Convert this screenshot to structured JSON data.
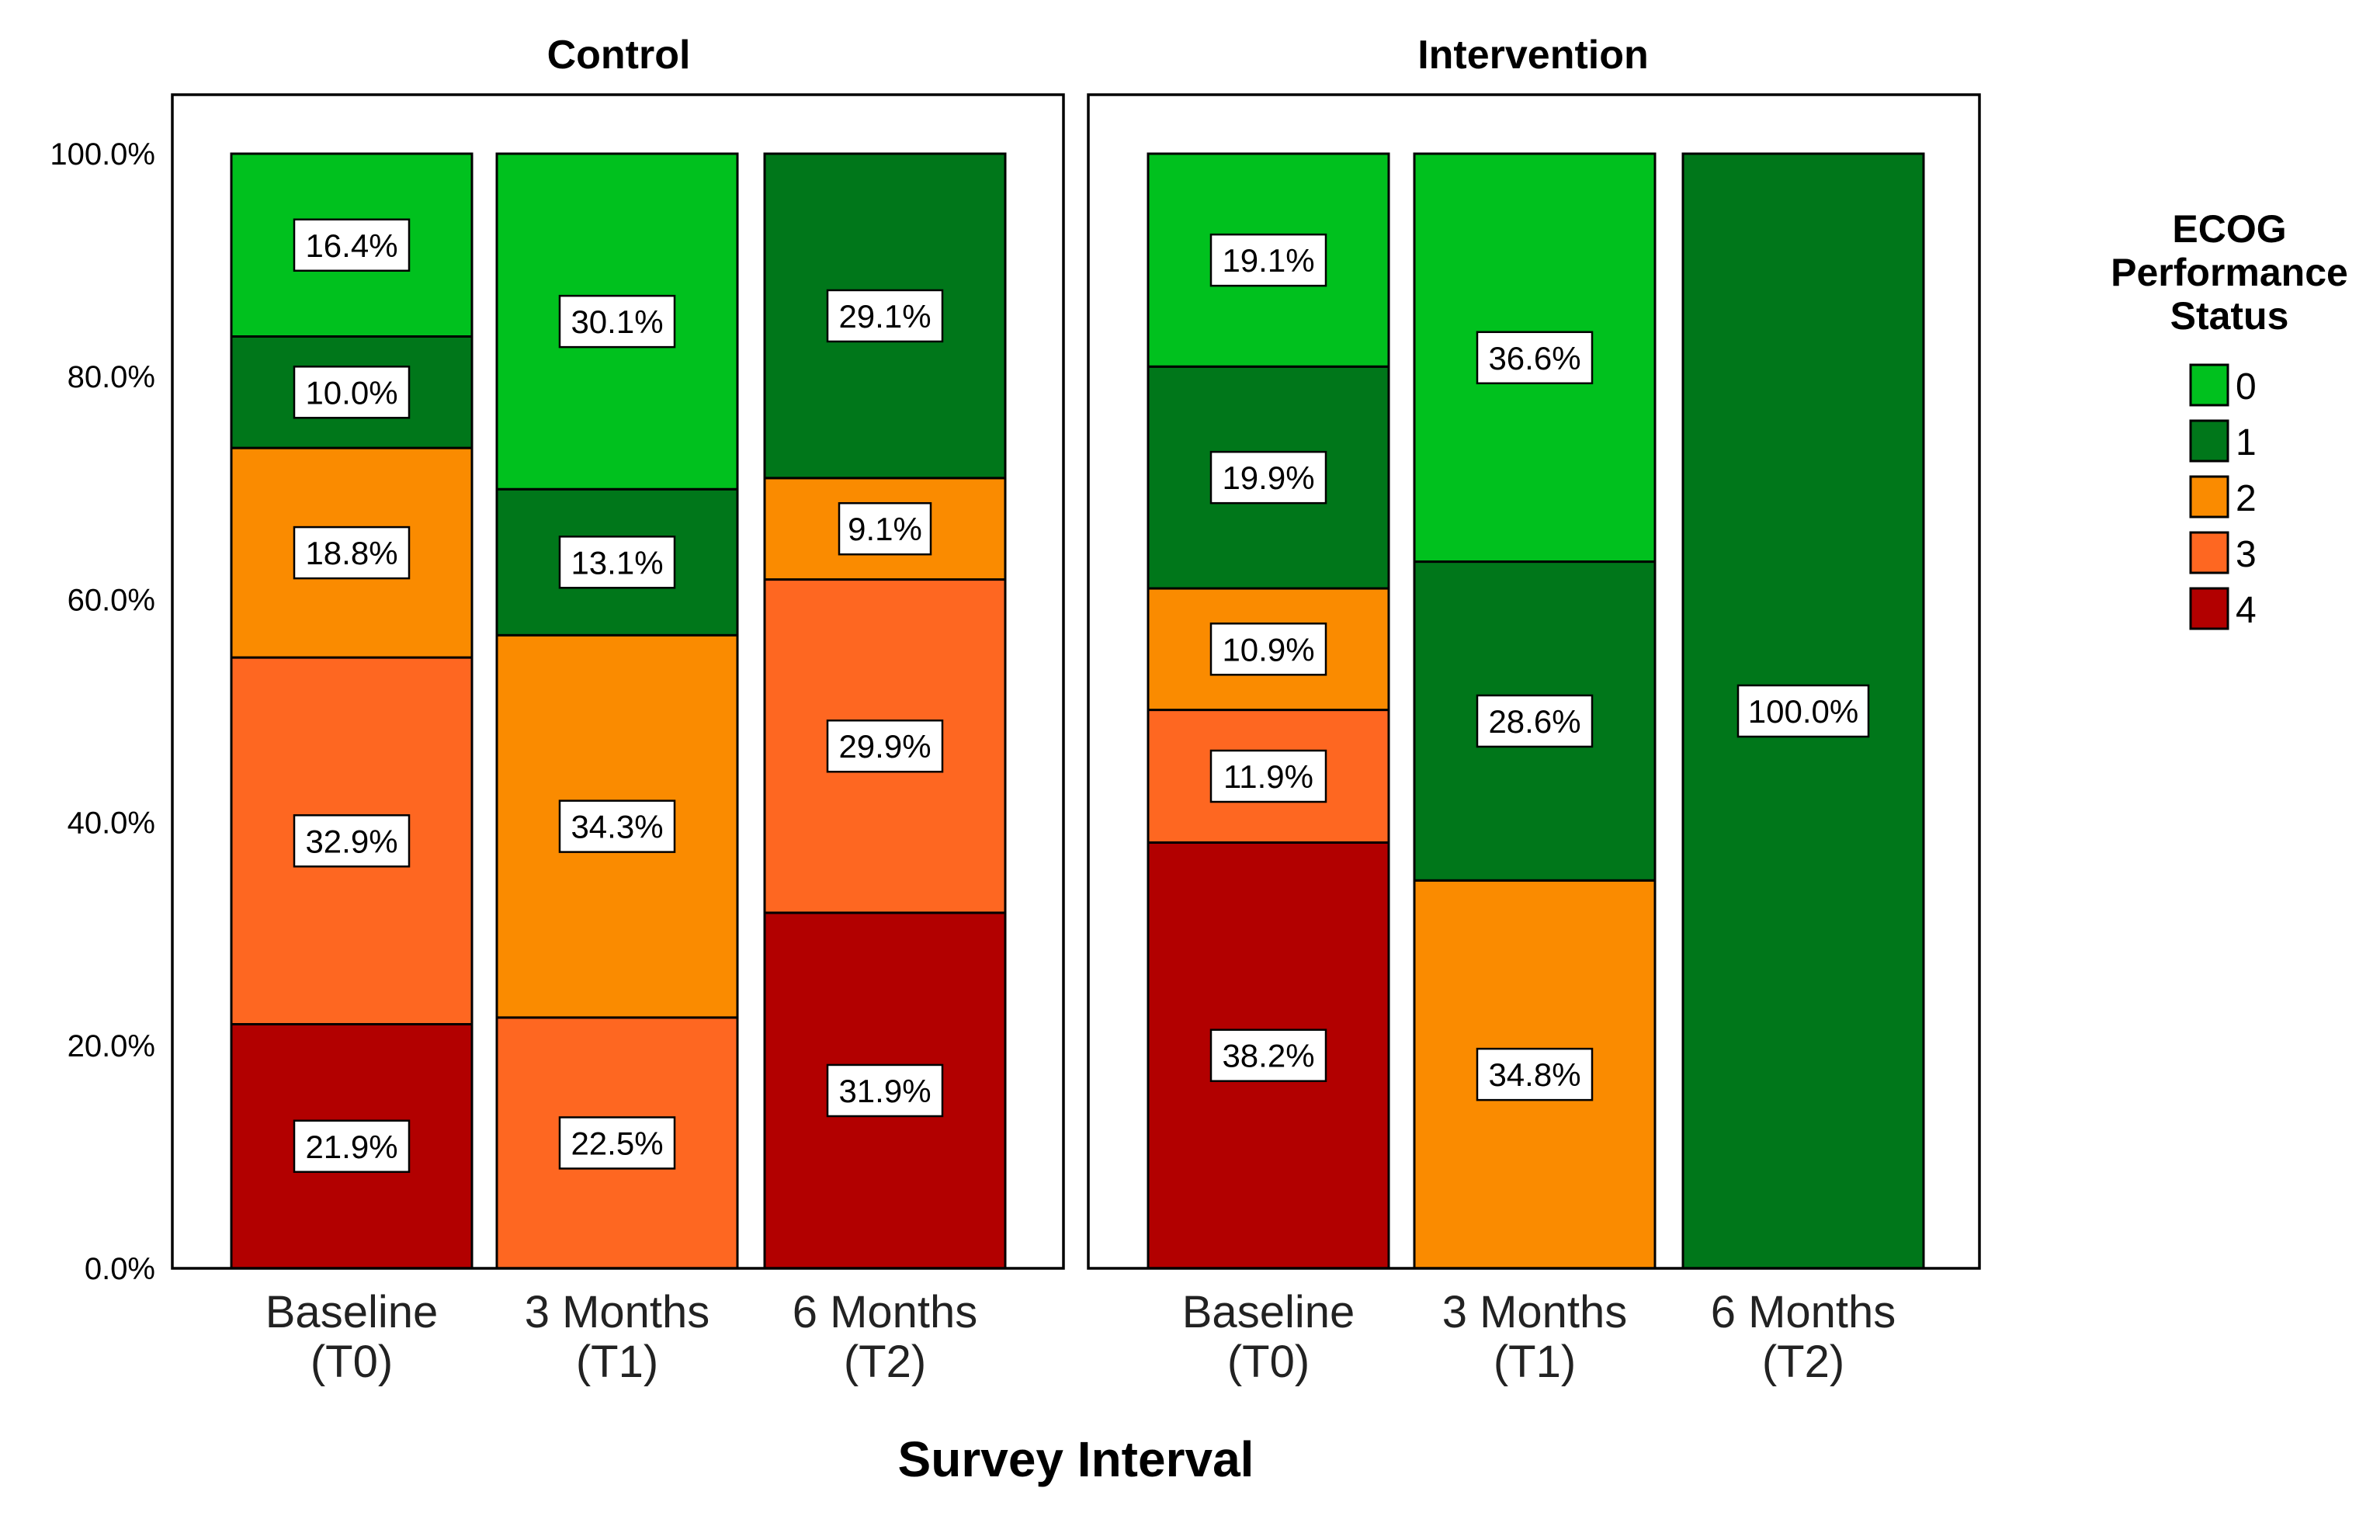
{
  "chart_data": {
    "type": "bar",
    "stacked": true,
    "percent_scale": true,
    "xlabel": "Survey Interval",
    "ylabel": "",
    "ylim": [
      0,
      100
    ],
    "yticks": [
      "0.0%",
      "20.0%",
      "40.0%",
      "60.0%",
      "80.0%",
      "100.0%"
    ],
    "ytick_values": [
      0,
      20,
      40,
      60,
      80,
      100
    ],
    "categories": [
      [
        "Baseline",
        "(T0)"
      ],
      [
        "3 Months",
        "(T1)"
      ],
      [
        "6 Months",
        "(T2)"
      ]
    ],
    "legend": {
      "title": [
        "ECOG",
        "Performance",
        "Status"
      ],
      "position": "right",
      "entries": [
        {
          "label": "0",
          "color": "#00C11E"
        },
        {
          "label": "1",
          "color": "#00771A"
        },
        {
          "label": "2",
          "color": "#FA8B00"
        },
        {
          "label": "3",
          "color": "#FE6721"
        },
        {
          "label": "4",
          "color": "#B20000"
        }
      ]
    },
    "panels": [
      {
        "title": "Control",
        "bars": [
          {
            "category": "Baseline (T0)",
            "segments": [
              {
                "status": "4",
                "value": 21.9,
                "label": "21.9%"
              },
              {
                "status": "3",
                "value": 32.9,
                "label": "32.9%"
              },
              {
                "status": "2",
                "value": 18.8,
                "label": "18.8%"
              },
              {
                "status": "1",
                "value": 10.0,
                "label": "10.0%"
              },
              {
                "status": "0",
                "value": 16.4,
                "label": "16.4%"
              }
            ]
          },
          {
            "category": "3 Months (T1)",
            "segments": [
              {
                "status": "3",
                "value": 22.5,
                "label": "22.5%"
              },
              {
                "status": "2",
                "value": 34.3,
                "label": "34.3%"
              },
              {
                "status": "1",
                "value": 13.1,
                "label": "13.1%"
              },
              {
                "status": "0",
                "value": 30.1,
                "label": "30.1%"
              }
            ]
          },
          {
            "category": "6 Months (T2)",
            "segments": [
              {
                "status": "4",
                "value": 31.9,
                "label": "31.9%"
              },
              {
                "status": "3",
                "value": 29.9,
                "label": "29.9%"
              },
              {
                "status": "2",
                "value": 9.1,
                "label": "9.1%"
              },
              {
                "status": "1",
                "value": 29.1,
                "label": "29.1%"
              }
            ]
          }
        ]
      },
      {
        "title": "Intervention",
        "bars": [
          {
            "category": "Baseline (T0)",
            "segments": [
              {
                "status": "4",
                "value": 38.2,
                "label": "38.2%"
              },
              {
                "status": "3",
                "value": 11.9,
                "label": "11.9%"
              },
              {
                "status": "2",
                "value": 10.9,
                "label": "10.9%"
              },
              {
                "status": "1",
                "value": 19.9,
                "label": "19.9%"
              },
              {
                "status": "0",
                "value": 19.1,
                "label": "19.1%"
              }
            ]
          },
          {
            "category": "3 Months (T1)",
            "segments": [
              {
                "status": "2",
                "value": 34.8,
                "label": "34.8%"
              },
              {
                "status": "1",
                "value": 28.6,
                "label": "28.6%"
              },
              {
                "status": "0",
                "value": 36.6,
                "label": "36.6%"
              }
            ]
          },
          {
            "category": "6 Months (T2)",
            "segments": [
              {
                "status": "1",
                "value": 100.0,
                "label": "100.0%"
              }
            ]
          }
        ]
      }
    ]
  }
}
